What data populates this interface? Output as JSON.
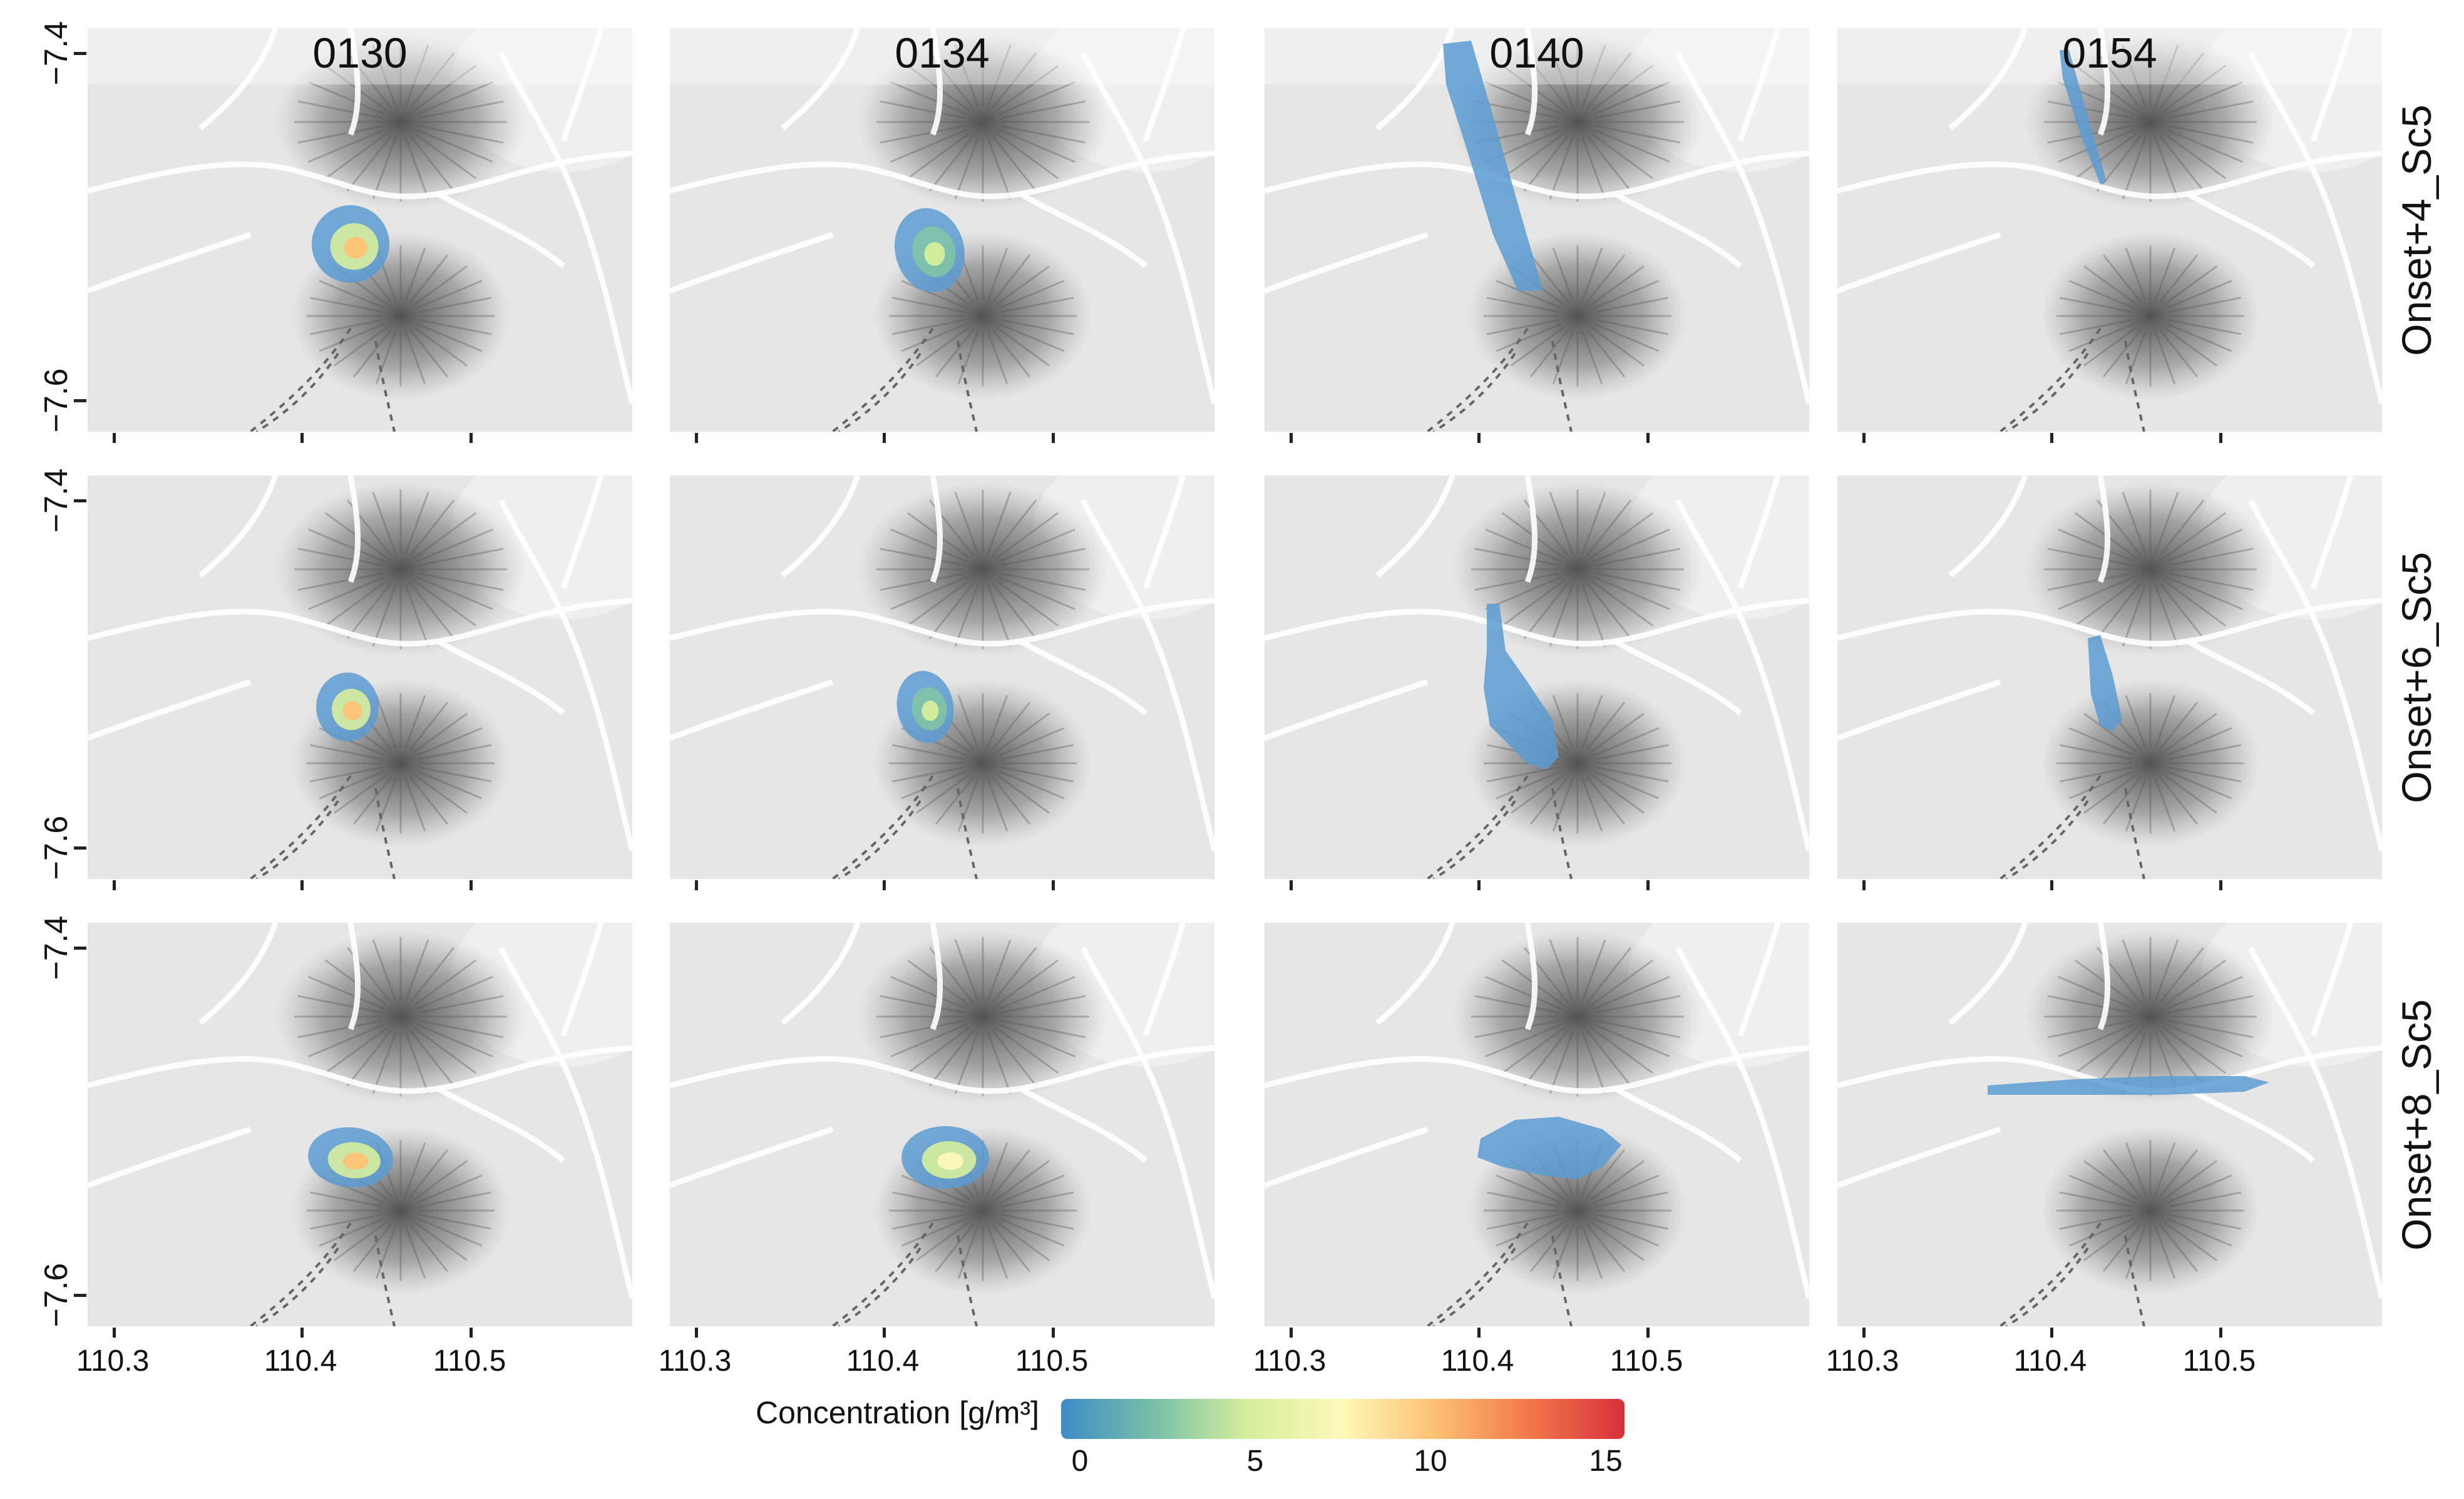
{
  "columns": [
    "0130",
    "0134",
    "0140",
    "0154"
  ],
  "rows": [
    "Onset+4_Sc5",
    "Onset+6_Sc5",
    "Onset+8_Sc5"
  ],
  "y_axis": {
    "ticks": [
      "−7.4",
      "−7.6"
    ]
  },
  "x_axis": {
    "ticks": [
      "110.3",
      "110.4",
      "110.5"
    ]
  },
  "legend": {
    "title": "Concentration [g/m³]",
    "ticks": [
      "0",
      "5",
      "10",
      "15"
    ],
    "colors": [
      "#3c8cc7",
      "#7fc4a7",
      "#d6ee9c",
      "#fdf8b9",
      "#fdc274",
      "#f47d4c",
      "#d7303a"
    ],
    "range": [
      0,
      15
    ]
  },
  "map_colors": {
    "background": "#e6e6e6",
    "terrain_dark": "#4a4a4a",
    "roads": "#ffffff",
    "plume_low": "#5b9bd0"
  },
  "plumes": [
    {
      "row": 0,
      "col": 0,
      "peak": 9
    },
    {
      "row": 0,
      "col": 1,
      "peak": 6
    },
    {
      "row": 0,
      "col": 2,
      "peak": 1
    },
    {
      "row": 0,
      "col": 3,
      "peak": 1
    },
    {
      "row": 1,
      "col": 0,
      "peak": 9
    },
    {
      "row": 1,
      "col": 1,
      "peak": 6
    },
    {
      "row": 1,
      "col": 2,
      "peak": 1
    },
    {
      "row": 1,
      "col": 3,
      "peak": 1
    },
    {
      "row": 2,
      "col": 0,
      "peak": 9
    },
    {
      "row": 2,
      "col": 1,
      "peak": 8
    },
    {
      "row": 2,
      "col": 2,
      "peak": 1
    },
    {
      "row": 2,
      "col": 3,
      "peak": 1
    }
  ]
}
